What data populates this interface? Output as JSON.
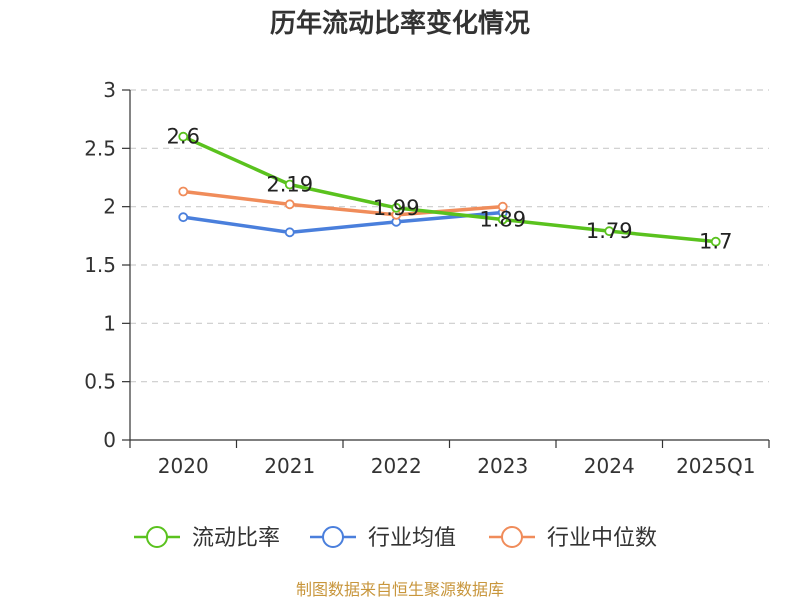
{
  "chart_data": {
    "type": "line",
    "title": "历年流动比率变化情况",
    "categories": [
      "2020",
      "2021",
      "2022",
      "2023",
      "2024",
      "2025Q1"
    ],
    "ylim": [
      0,
      3
    ],
    "yticks": [
      "0",
      "0.5",
      "1",
      "1.5",
      "2",
      "2.5",
      "3"
    ],
    "ytick_values": [
      0,
      0.5,
      1,
      1.5,
      2,
      2.5,
      3
    ],
    "grid": true,
    "legend_position": "bottom",
    "series": [
      {
        "name": "流动比率",
        "color": "#5ac21e",
        "values": [
          2.6,
          2.19,
          1.99,
          1.89,
          1.79,
          1.7
        ],
        "labels": [
          "2.6",
          "2.19",
          "1.99",
          "1.89",
          "1.79",
          "1.7"
        ]
      },
      {
        "name": "行业均值",
        "color": "#4a7fdc",
        "values": [
          1.91,
          1.78,
          1.87,
          1.95,
          null,
          null
        ]
      },
      {
        "name": "行业中位数",
        "color": "#f08c5a",
        "values": [
          2.13,
          2.02,
          1.93,
          2.0,
          null,
          null
        ]
      }
    ],
    "source": "制图数据来自恒生聚源数据库"
  }
}
